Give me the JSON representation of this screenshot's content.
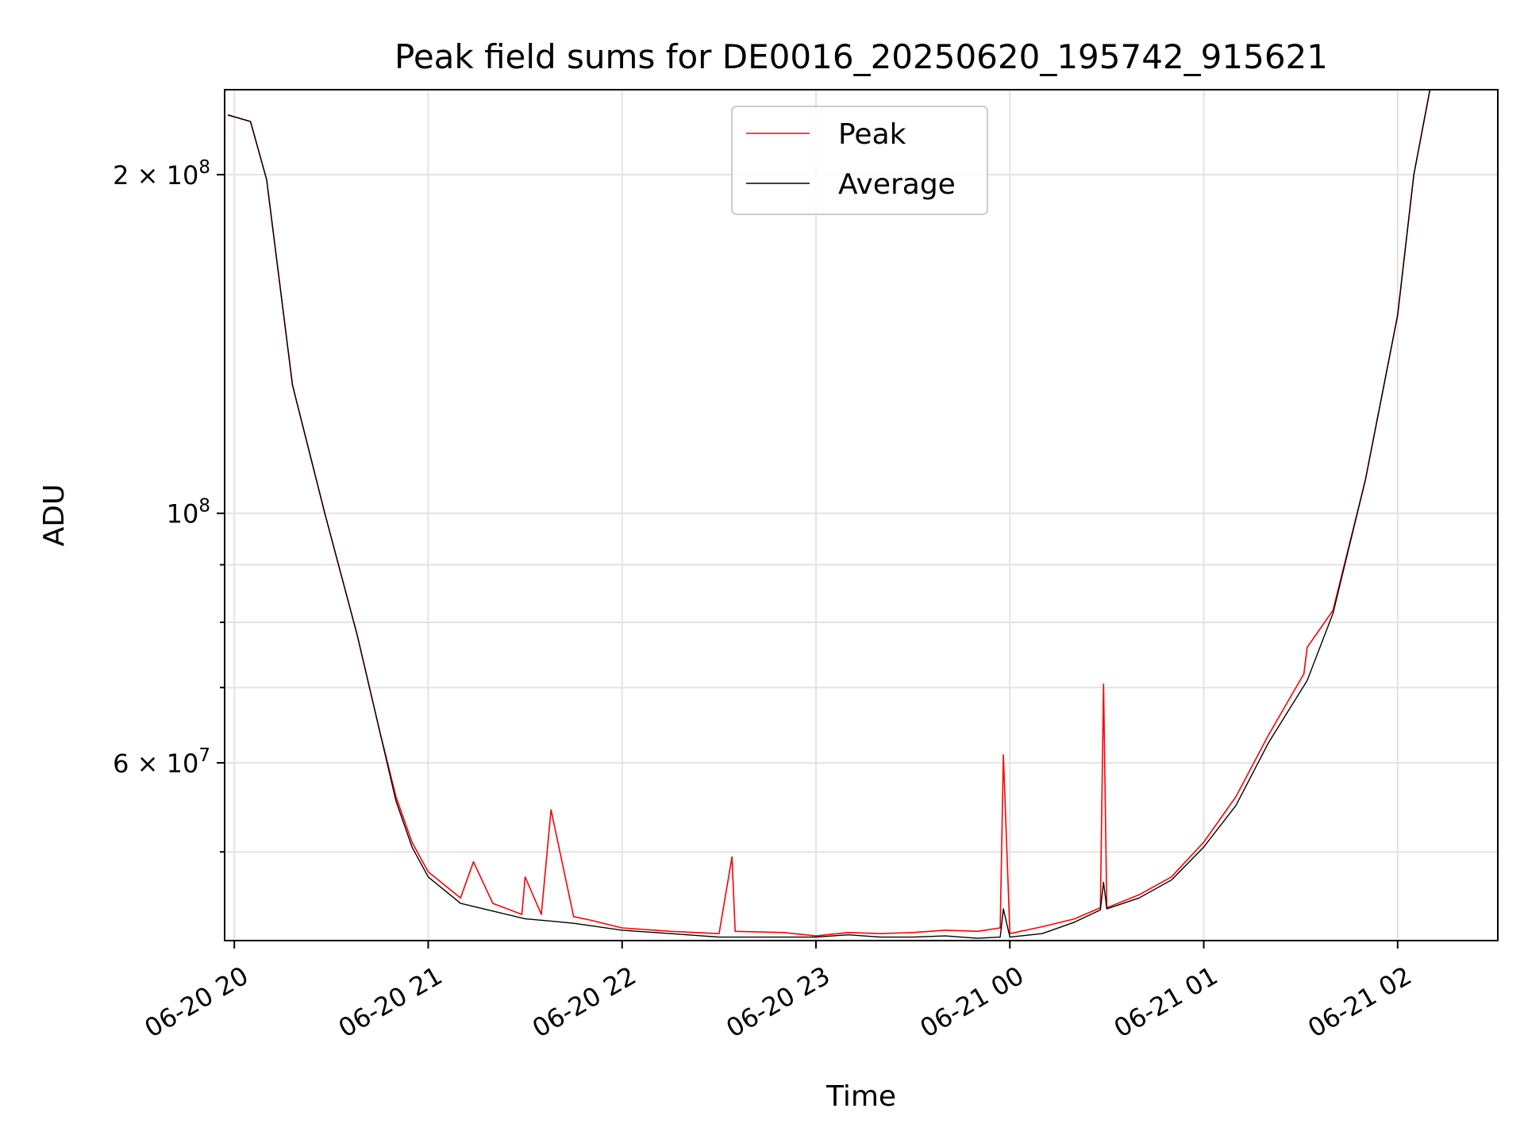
{
  "chart_data": {
    "type": "line",
    "title": "Peak field sums for DE0016_20250620_195742_915621",
    "xlabel": "Time",
    "ylabel": "ADU",
    "yscale": "log",
    "xlim": [
      "2025-06-20T19:57",
      "2025-06-21T02:31"
    ],
    "ylim": [
      41700000,
      238000000
    ],
    "grid": true,
    "legend_position": "top-center",
    "x_ticks": [
      {
        "value": "2025-06-20T20:00",
        "label": "06-20 20"
      },
      {
        "value": "2025-06-20T21:00",
        "label": "06-20 21"
      },
      {
        "value": "2025-06-20T22:00",
        "label": "06-20 22"
      },
      {
        "value": "2025-06-20T23:00",
        "label": "06-20 23"
      },
      {
        "value": "2025-06-21T00:00",
        "label": "06-21 00"
      },
      {
        "value": "2025-06-21T01:00",
        "label": "06-21 01"
      },
      {
        "value": "2025-06-21T02:00",
        "label": "06-21 02"
      }
    ],
    "y_ticks_major": [
      {
        "value": 60000000,
        "mantissa": "6",
        "exp": "7"
      },
      {
        "value": 100000000,
        "mantissa": "",
        "exp": "8"
      },
      {
        "value": 200000000,
        "mantissa": "2",
        "exp": "8"
      }
    ],
    "y_ticks_minor": [
      50000000,
      70000000,
      80000000,
      90000000
    ],
    "series": [
      {
        "name": "Peak",
        "color": "#ff0000",
        "x": [
          "2025-06-20T19:58",
          "2025-06-20T20:05",
          "2025-06-20T20:10",
          "2025-06-20T20:18",
          "2025-06-20T20:28",
          "2025-06-20T20:38",
          "2025-06-20T20:45",
          "2025-06-20T20:50",
          "2025-06-20T20:55",
          "2025-06-20T21:00",
          "2025-06-20T21:10",
          "2025-06-20T21:14",
          "2025-06-20T21:20",
          "2025-06-20T21:29",
          "2025-06-20T21:30",
          "2025-06-20T21:35",
          "2025-06-20T21:38",
          "2025-06-20T21:45",
          "2025-06-20T21:50",
          "2025-06-20T22:00",
          "2025-06-20T22:15",
          "2025-06-20T22:30",
          "2025-06-20T22:34",
          "2025-06-20T22:35",
          "2025-06-20T22:50",
          "2025-06-20T23:00",
          "2025-06-20T23:10",
          "2025-06-20T23:20",
          "2025-06-20T23:30",
          "2025-06-20T23:40",
          "2025-06-20T23:50",
          "2025-06-20T23:57",
          "2025-06-20T23:58",
          "2025-06-21T00:00",
          "2025-06-21T00:10",
          "2025-06-21T00:20",
          "2025-06-21T00:28",
          "2025-06-21T00:29",
          "2025-06-21T00:30",
          "2025-06-21T00:40",
          "2025-06-21T00:50",
          "2025-06-21T01:00",
          "2025-06-21T01:10",
          "2025-06-21T01:20",
          "2025-06-21T01:31",
          "2025-06-21T01:32",
          "2025-06-21T01:40",
          "2025-06-21T01:50",
          "2025-06-21T02:00",
          "2025-06-21T02:05",
          "2025-06-21T02:10"
        ],
        "y": [
          226000000,
          223000000,
          198000000,
          130000000,
          100000000,
          78000000,
          64000000,
          56000000,
          51000000,
          48000000,
          45500000,
          49000000,
          45000000,
          44000000,
          47500000,
          44000000,
          54500000,
          43800000,
          43500000,
          42800000,
          42500000,
          42300000,
          49500000,
          42500000,
          42400000,
          42100000,
          42400000,
          42300000,
          42400000,
          42600000,
          42500000,
          42800000,
          61000000,
          42300000,
          42900000,
          43600000,
          44600000,
          70500000,
          44600000,
          45800000,
          47500000,
          51000000,
          56000000,
          63500000,
          72000000,
          76000000,
          82000000,
          107000000,
          150000000,
          200000000,
          238000000
        ]
      },
      {
        "name": "Average",
        "color": "#000000",
        "x": [
          "2025-06-20T19:58",
          "2025-06-20T20:05",
          "2025-06-20T20:10",
          "2025-06-20T20:18",
          "2025-06-20T20:28",
          "2025-06-20T20:38",
          "2025-06-20T20:45",
          "2025-06-20T20:50",
          "2025-06-20T20:55",
          "2025-06-20T21:00",
          "2025-06-20T21:10",
          "2025-06-20T21:20",
          "2025-06-20T21:30",
          "2025-06-20T21:38",
          "2025-06-20T21:45",
          "2025-06-20T21:50",
          "2025-06-20T22:00",
          "2025-06-20T22:15",
          "2025-06-20T22:30",
          "2025-06-20T22:50",
          "2025-06-20T23:00",
          "2025-06-20T23:10",
          "2025-06-20T23:20",
          "2025-06-20T23:30",
          "2025-06-20T23:40",
          "2025-06-20T23:50",
          "2025-06-20T23:57",
          "2025-06-20T23:58",
          "2025-06-21T00:00",
          "2025-06-21T00:10",
          "2025-06-21T00:20",
          "2025-06-21T00:28",
          "2025-06-21T00:29",
          "2025-06-21T00:30",
          "2025-06-21T00:40",
          "2025-06-21T00:50",
          "2025-06-21T01:00",
          "2025-06-21T01:10",
          "2025-06-21T01:20",
          "2025-06-21T01:32",
          "2025-06-21T01:40",
          "2025-06-21T01:50",
          "2025-06-21T02:00",
          "2025-06-21T02:05",
          "2025-06-21T02:10"
        ],
        "y": [
          226000000,
          223000000,
          198000000,
          130000000,
          100000000,
          78000000,
          64000000,
          55500000,
          50500000,
          47500000,
          45000000,
          44300000,
          43600000,
          43400000,
          43200000,
          43000000,
          42600000,
          42300000,
          42000000,
          42000000,
          42000000,
          42200000,
          42000000,
          42000000,
          42100000,
          41900000,
          42000000,
          44500000,
          42000000,
          42300000,
          43300000,
          44400000,
          47000000,
          44500000,
          45500000,
          47200000,
          50500000,
          55000000,
          62500000,
          71000000,
          81500000,
          107000000,
          150000000,
          200000000,
          238000000
        ]
      }
    ]
  }
}
